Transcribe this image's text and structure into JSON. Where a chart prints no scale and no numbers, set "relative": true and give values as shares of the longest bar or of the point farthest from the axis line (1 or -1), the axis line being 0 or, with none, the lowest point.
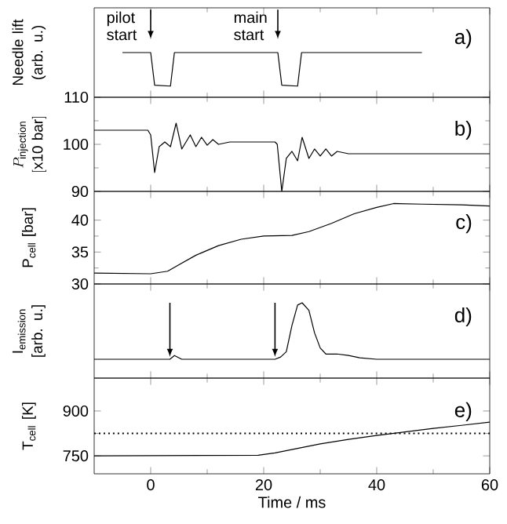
{
  "chart_data": [
    {
      "type": "line",
      "relative": true,
      "title": "a)",
      "ylabel": "Needle lift (arb. u.)",
      "xlim": [
        -10,
        60
      ],
      "xticks": [
        0,
        20,
        40,
        60
      ],
      "tick_labels": false,
      "color": "#000000",
      "x": [
        -5,
        0,
        0.7,
        3.5,
        4.2,
        22.5,
        23.2,
        26,
        26.7,
        48
      ],
      "values": [
        1,
        1,
        0.27,
        0.25,
        1,
        1,
        0.27,
        0.25,
        1,
        1
      ],
      "annotations": [
        "pilot start",
        "main start"
      ]
    },
    {
      "type": "line",
      "title": "b)",
      "ylabel": "\\begin{array}{c}P_{\\mathrm{injection}}\\\\ \\mathrm{[x10\\ bar]}\\end{array}",
      "xlim": [
        -10,
        60
      ],
      "xticks": [
        0,
        20,
        40,
        60
      ],
      "ylim": [
        90,
        110
      ],
      "yticks": [
        90,
        100,
        110
      ],
      "tick_labels": "y",
      "color": "#000000",
      "x": [
        -10,
        -0.5,
        0,
        0.7,
        1.5,
        2.5,
        3.5,
        4.5,
        5.5,
        7,
        8,
        9,
        10,
        11,
        12,
        14,
        22,
        22.4,
        23.2,
        24,
        25,
        26,
        26.8,
        28,
        29,
        30,
        31,
        32,
        33,
        35,
        60
      ],
      "values": [
        103,
        103,
        102,
        94,
        99.5,
        100.5,
        99.5,
        104.5,
        99,
        102,
        99.5,
        101.5,
        99.8,
        101,
        100,
        100.5,
        100.5,
        100,
        90,
        97,
        98.5,
        96.5,
        101.5,
        97,
        99,
        97.5,
        99,
        97.5,
        98.5,
        98,
        98
      ]
    },
    {
      "type": "line",
      "title": "c)",
      "ylabel": "P$_{cell}$ [bar]",
      "xlim": [
        -10,
        60
      ],
      "xticks": [
        0,
        20,
        40,
        60
      ],
      "ylim": [
        30,
        44.5
      ],
      "yticks": [
        30,
        35,
        40
      ],
      "tick_labels": "y",
      "color": "#000000",
      "x": [
        -10,
        0,
        3,
        5,
        8,
        12,
        16,
        20,
        25,
        28,
        32,
        36,
        40,
        43,
        48,
        55,
        60
      ],
      "values": [
        31.7,
        31.6,
        32,
        33,
        34.5,
        36,
        37,
        37.5,
        37.6,
        38.2,
        39.5,
        41,
        42,
        42.6,
        42.5,
        42.4,
        42.2
      ]
    },
    {
      "type": "line",
      "relative": true,
      "title": "d)",
      "ylabel": "I$_{emission}$ [arb. u.]",
      "xlim": [
        -10,
        60
      ],
      "xticks": [
        0,
        20,
        40,
        60
      ],
      "tick_labels": false,
      "color": "#000000",
      "x": [
        -10,
        3.4,
        4.2,
        5.5,
        22,
        23,
        24,
        25,
        26,
        26.8,
        28,
        29,
        30,
        31,
        33,
        35,
        37,
        40,
        60
      ],
      "values": [
        0.25,
        0.25,
        0.3,
        0.25,
        0.25,
        0.28,
        0.35,
        0.7,
        0.97,
        1,
        0.9,
        0.6,
        0.4,
        0.32,
        0.32,
        0.3,
        0.27,
        0.25,
        0.25
      ]
    },
    {
      "type": "line",
      "title": "e)",
      "ylabel": "T$_{cell}$ [K]",
      "xlabel": "Time / ms",
      "xlim": [
        -10,
        60
      ],
      "xticks": [
        0,
        20,
        40,
        60
      ],
      "ylim": [
        690,
        1010
      ],
      "yticks": [
        750,
        900
      ],
      "color": "#000000",
      "x": [
        -10,
        19,
        22,
        26,
        30,
        35,
        40,
        45,
        50,
        55,
        60
      ],
      "values": [
        750,
        752,
        760,
        775,
        790,
        805,
        818,
        830,
        842,
        852,
        863
      ],
      "ref_lines": [
        {
          "axis": "y",
          "value": 825,
          "line_style": "dotted",
          "color": "#000000"
        }
      ]
    }
  ]
}
